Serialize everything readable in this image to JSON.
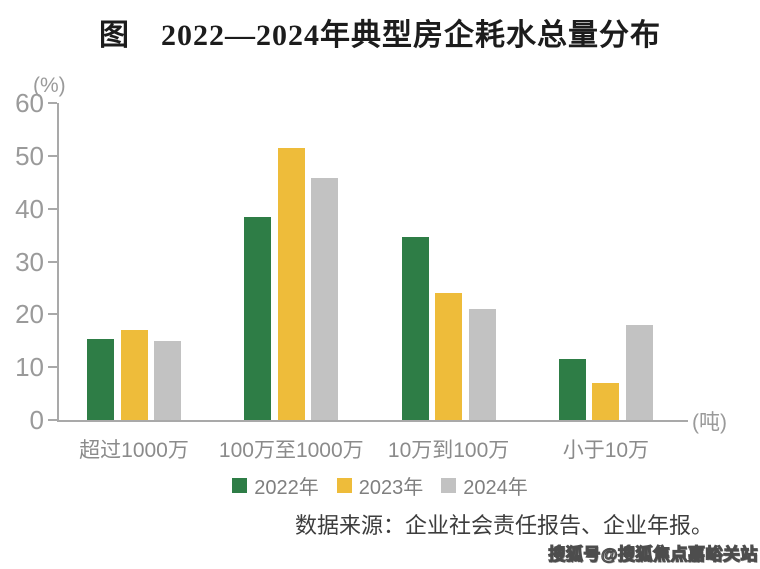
{
  "title": "图　2022—2024年典型房企耗水总量分布",
  "source": "数据来源：企业社会责任报告、企业年报。",
  "watermark": "搜狐号@搜狐焦点嘉峪关站",
  "colors": {
    "axis": "#a9a9a9",
    "tick_label": "#9a9a9a",
    "category_label": "#8b8b8b",
    "legend_label": "#7f7f7f",
    "title": "#1c1c1c",
    "source_text": "#3d3d3d",
    "series_2022": "#2e7d46",
    "series_2023": "#eebc3a",
    "series_2024": "#c2c2c2"
  },
  "chart_data": {
    "type": "bar",
    "title": "图　2022—2024年典型房企耗水总量分布",
    "categories": [
      "超过1000万",
      "100万至1000万",
      "10万到100万",
      "小于10万"
    ],
    "series": [
      {
        "name": "2022年",
        "color": "#2e7d46",
        "values": [
          15.4,
          38.4,
          34.6,
          11.6
        ]
      },
      {
        "name": "2023年",
        "color": "#eebc3a",
        "values": [
          17.1,
          51.4,
          24.1,
          7.0
        ]
      },
      {
        "name": "2024年",
        "color": "#c2c2c2",
        "values": [
          15.0,
          45.8,
          21.1,
          17.9
        ]
      }
    ],
    "ylabel": "(%)",
    "xlabel": "(吨)",
    "ylim": [
      0,
      60
    ],
    "yticks": [
      0,
      10,
      20,
      30,
      40,
      50,
      60
    ],
    "grid": false,
    "legend_position": "bottom"
  }
}
